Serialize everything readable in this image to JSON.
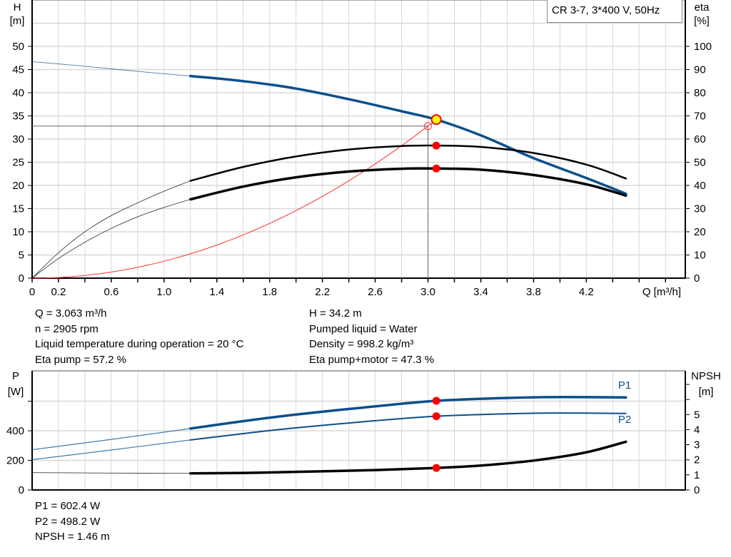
{
  "title": "CR 3-7, 3*400 V, 50Hz",
  "colors": {
    "head": "#0a4f8c",
    "power": "#0a4f8c",
    "efficiency": "#000000",
    "npsh": "#000000",
    "system": "#ff3030",
    "marker": "#ff0000",
    "duty_point": "#ffff00",
    "grid": "#d8d8d8"
  },
  "readouts_top": {
    "left": [
      "Q = 3.063 m³/h",
      "n = 2905 rpm",
      "Liquid temperature during operation = 20 °C",
      "Eta pump = 57.2 %"
    ],
    "right": [
      "H = 34.2 m",
      "Pumped liquid = Water",
      "Density = 998.2 kg/m³",
      "Eta pump+motor = 47.3 %"
    ]
  },
  "readouts_bottom": [
    "P1 = 602.4 W",
    "P2 = 498.2 W",
    "NPSH = 1.46 m"
  ],
  "chart_data": [
    {
      "type": "line",
      "xlabel": "Q [m³/h]",
      "ylabel_left": [
        "H",
        "[m]"
      ],
      "ylabel_right": [
        "eta",
        "[%]"
      ],
      "xlim": [
        0,
        4.95
      ],
      "ylim_left": [
        0,
        60
      ],
      "ylim_right": [
        0,
        120
      ],
      "x_tick_labels": [
        "0",
        "0.2",
        "0.6",
        "1.0",
        "1.4",
        "1.8",
        "2.2",
        "2.6",
        "3.0",
        "3.4",
        "3.8",
        "4.2"
      ],
      "x_tick_values": [
        0,
        0.2,
        0.6,
        1.0,
        1.4,
        1.8,
        2.2,
        2.6,
        3.0,
        3.4,
        3.8,
        4.2
      ],
      "y_ticks_left": [
        0,
        5,
        10,
        15,
        20,
        25,
        30,
        35,
        40,
        45,
        50
      ],
      "y_ticks_right": [
        0,
        10,
        20,
        30,
        40,
        50,
        60,
        70,
        80,
        90,
        100
      ],
      "grid": true,
      "series": [
        {
          "name": "H",
          "axis": "left",
          "color": "#0a4f8c",
          "thick_from": 1.2,
          "x": [
            0,
            0.4,
            0.8,
            1.2,
            1.6,
            2.0,
            2.4,
            2.8,
            3.063,
            3.4,
            3.8,
            4.2,
            4.5
          ],
          "y": [
            46.7,
            45.7,
            44.6,
            43.6,
            42.5,
            40.9,
            38.6,
            36.0,
            34.2,
            30.8,
            25.9,
            21.6,
            18.2
          ]
        },
        {
          "name": "Eta pump",
          "axis": "right",
          "color": "#000000",
          "thick_from": 1.2,
          "x": [
            0,
            0.2,
            0.4,
            0.6,
            0.8,
            1.0,
            1.2,
            1.6,
            2.0,
            2.4,
            2.8,
            3.063,
            3.4,
            3.8,
            4.2,
            4.5
          ],
          "y": [
            0,
            11,
            20,
            27,
            32.5,
            37.5,
            42,
            48,
            52.5,
            55.5,
            57,
            57.2,
            56.6,
            54,
            49,
            43
          ]
        },
        {
          "name": "Eta pump+motor",
          "axis": "right",
          "color": "#000000",
          "thick_from": 1.2,
          "x": [
            0,
            0.2,
            0.4,
            0.6,
            0.8,
            1.0,
            1.2,
            1.6,
            2.0,
            2.4,
            2.8,
            3.063,
            3.4,
            3.8,
            4.2,
            4.5
          ],
          "y": [
            0,
            8.5,
            15.5,
            21.5,
            26.5,
            30.5,
            34,
            39.5,
            43.5,
            46,
            47.2,
            47.3,
            46.8,
            44.5,
            40.5,
            35.6
          ]
        }
      ],
      "system_curve": {
        "k": 3.644,
        "x_end": 3.063
      },
      "system_point": {
        "x": 3.0,
        "y": 32.8
      },
      "duty_point": {
        "x": 3.063,
        "H": 34.2,
        "eta_pump": 57.2,
        "eta_total": 47.3
      }
    },
    {
      "type": "line",
      "ylabel_left": [
        "P",
        "[W]"
      ],
      "ylabel_right": [
        "NPSH",
        "[m]"
      ],
      "xlim": [
        0,
        4.95
      ],
      "ylim_left": [
        0,
        805
      ],
      "ylim_right": [
        0,
        7.9
      ],
      "y_ticks_left": [
        0,
        200,
        400,
        600
      ],
      "y_tick_labels_left": [
        "0",
        "200",
        "400",
        ""
      ],
      "y_ticks_right": [
        0,
        1,
        2,
        3,
        4,
        5,
        6,
        7
      ],
      "y_tick_labels_right": [
        "0",
        "1",
        "2",
        "3",
        "4",
        "5",
        "",
        ""
      ],
      "grid": true,
      "series": [
        {
          "name": "P1",
          "axis": "left",
          "color": "#0a4f8c",
          "width": 3.5,
          "thick_from": 1.2,
          "x": [
            0,
            0.6,
            1.2,
            1.6,
            2.0,
            2.6,
            3.063,
            3.6,
            4.0,
            4.5
          ],
          "y": [
            272,
            342,
            415,
            465,
            510,
            565,
            602.4,
            622,
            628,
            625
          ]
        },
        {
          "name": "P2",
          "axis": "left",
          "color": "#0a4f8c",
          "width": 2,
          "thick_from": 1.2,
          "x": [
            0,
            0.6,
            1.2,
            1.6,
            2.0,
            2.6,
            3.063,
            3.6,
            4.0,
            4.5
          ],
          "y": [
            205,
            270,
            338,
            381,
            420,
            468,
            498.2,
            515,
            520,
            517
          ]
        },
        {
          "name": "NPSH",
          "axis": "right",
          "color": "#000000",
          "width": 3.5,
          "thick_from": 1.2,
          "x": [
            0,
            0.6,
            1.2,
            1.6,
            2.0,
            2.6,
            3.063,
            3.4,
            3.8,
            4.2,
            4.5
          ],
          "y": [
            1.15,
            1.12,
            1.1,
            1.13,
            1.2,
            1.32,
            1.46,
            1.62,
            1.95,
            2.5,
            3.2
          ]
        }
      ],
      "duty_point": {
        "x": 3.063,
        "P1": 602.4,
        "P2": 498.2,
        "NPSH": 1.46
      },
      "legend": [
        "P1",
        "P2"
      ]
    }
  ]
}
